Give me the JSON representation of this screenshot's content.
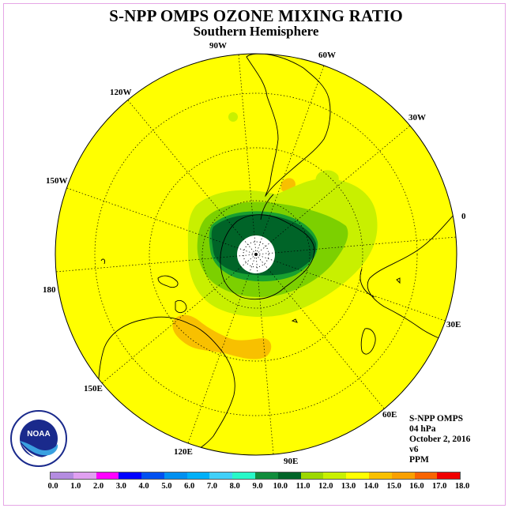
{
  "title": "S-NPP OMPS OZONE MIXING RATIO",
  "subtitle": "Southern Hemisphere",
  "map": {
    "projection": "polar stereographic",
    "hemisphere": "south",
    "longitude_labels": [
      "0",
      "30E",
      "60E",
      "90E",
      "120E",
      "150E",
      "180",
      "150W",
      "120W",
      "90W",
      "60W",
      "30W"
    ],
    "colors": {
      "background_field": "#ffff00",
      "light_green": "#c8f000",
      "green": "#7cd000",
      "dark_green": "#18a030",
      "darkest_green": "#006428",
      "orange": "#f8c000",
      "no_data": "#ffffff",
      "coast": "#000000"
    }
  },
  "info": {
    "instrument": "S-NPP OMPS",
    "level": "04 hPa",
    "date": "October 2, 2016",
    "version": "v6",
    "units": "PPM"
  },
  "legend": {
    "ticks": [
      "0.0",
      "1.0",
      "2.0",
      "3.0",
      "4.0",
      "5.0",
      "6.0",
      "7.0",
      "8.0",
      "9.0",
      "10.0",
      "11.0",
      "12.0",
      "13.0",
      "14.0",
      "15.0",
      "16.0",
      "17.0",
      "18.0"
    ],
    "colors": [
      "#b48ce0",
      "#e0a0f0",
      "#ff00ff",
      "#0000ff",
      "#0050f0",
      "#0090f0",
      "#00b0f8",
      "#40d0f8",
      "#28f8c8",
      "#108c3c",
      "#006428",
      "#9cd800",
      "#c8f000",
      "#ffff00",
      "#f8c000",
      "#f8a000",
      "#f86400",
      "#f00000",
      "#8c5030"
    ]
  },
  "logo": {
    "text": "NOAA"
  }
}
